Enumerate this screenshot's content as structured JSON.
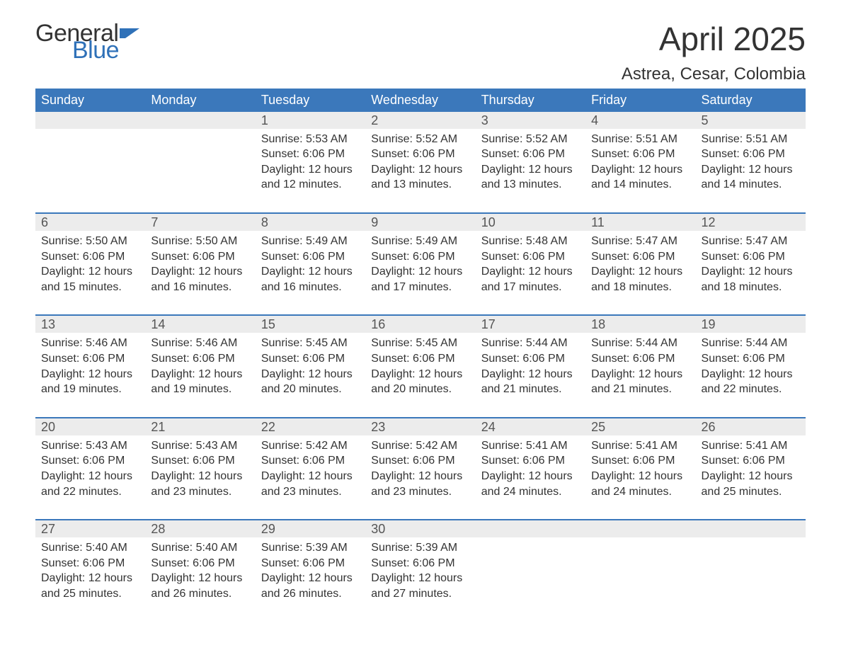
{
  "logo": {
    "text_general": "General",
    "text_blue": "Blue",
    "flag_color": "#2f71b8"
  },
  "title": "April 2025",
  "subtitle": "Astrea, Cesar, Colombia",
  "colors": {
    "header_bg": "#3b78bb",
    "header_text": "#ffffff",
    "daynum_bg": "#ececec",
    "rule": "#3b78bb",
    "text": "#333333"
  },
  "weekdays": [
    "Sunday",
    "Monday",
    "Tuesday",
    "Wednesday",
    "Thursday",
    "Friday",
    "Saturday"
  ],
  "weeks": [
    [
      {
        "num": "",
        "lines": []
      },
      {
        "num": "",
        "lines": []
      },
      {
        "num": "1",
        "lines": [
          "Sunrise: 5:53 AM",
          "Sunset: 6:06 PM",
          "Daylight: 12 hours and 12 minutes."
        ]
      },
      {
        "num": "2",
        "lines": [
          "Sunrise: 5:52 AM",
          "Sunset: 6:06 PM",
          "Daylight: 12 hours and 13 minutes."
        ]
      },
      {
        "num": "3",
        "lines": [
          "Sunrise: 5:52 AM",
          "Sunset: 6:06 PM",
          "Daylight: 12 hours and 13 minutes."
        ]
      },
      {
        "num": "4",
        "lines": [
          "Sunrise: 5:51 AM",
          "Sunset: 6:06 PM",
          "Daylight: 12 hours and 14 minutes."
        ]
      },
      {
        "num": "5",
        "lines": [
          "Sunrise: 5:51 AM",
          "Sunset: 6:06 PM",
          "Daylight: 12 hours and 14 minutes."
        ]
      }
    ],
    [
      {
        "num": "6",
        "lines": [
          "Sunrise: 5:50 AM",
          "Sunset: 6:06 PM",
          "Daylight: 12 hours and 15 minutes."
        ]
      },
      {
        "num": "7",
        "lines": [
          "Sunrise: 5:50 AM",
          "Sunset: 6:06 PM",
          "Daylight: 12 hours and 16 minutes."
        ]
      },
      {
        "num": "8",
        "lines": [
          "Sunrise: 5:49 AM",
          "Sunset: 6:06 PM",
          "Daylight: 12 hours and 16 minutes."
        ]
      },
      {
        "num": "9",
        "lines": [
          "Sunrise: 5:49 AM",
          "Sunset: 6:06 PM",
          "Daylight: 12 hours and 17 minutes."
        ]
      },
      {
        "num": "10",
        "lines": [
          "Sunrise: 5:48 AM",
          "Sunset: 6:06 PM",
          "Daylight: 12 hours and 17 minutes."
        ]
      },
      {
        "num": "11",
        "lines": [
          "Sunrise: 5:47 AM",
          "Sunset: 6:06 PM",
          "Daylight: 12 hours and 18 minutes."
        ]
      },
      {
        "num": "12",
        "lines": [
          "Sunrise: 5:47 AM",
          "Sunset: 6:06 PM",
          "Daylight: 12 hours and 18 minutes."
        ]
      }
    ],
    [
      {
        "num": "13",
        "lines": [
          "Sunrise: 5:46 AM",
          "Sunset: 6:06 PM",
          "Daylight: 12 hours and 19 minutes."
        ]
      },
      {
        "num": "14",
        "lines": [
          "Sunrise: 5:46 AM",
          "Sunset: 6:06 PM",
          "Daylight: 12 hours and 19 minutes."
        ]
      },
      {
        "num": "15",
        "lines": [
          "Sunrise: 5:45 AM",
          "Sunset: 6:06 PM",
          "Daylight: 12 hours and 20 minutes."
        ]
      },
      {
        "num": "16",
        "lines": [
          "Sunrise: 5:45 AM",
          "Sunset: 6:06 PM",
          "Daylight: 12 hours and 20 minutes."
        ]
      },
      {
        "num": "17",
        "lines": [
          "Sunrise: 5:44 AM",
          "Sunset: 6:06 PM",
          "Daylight: 12 hours and 21 minutes."
        ]
      },
      {
        "num": "18",
        "lines": [
          "Sunrise: 5:44 AM",
          "Sunset: 6:06 PM",
          "Daylight: 12 hours and 21 minutes."
        ]
      },
      {
        "num": "19",
        "lines": [
          "Sunrise: 5:44 AM",
          "Sunset: 6:06 PM",
          "Daylight: 12 hours and 22 minutes."
        ]
      }
    ],
    [
      {
        "num": "20",
        "lines": [
          "Sunrise: 5:43 AM",
          "Sunset: 6:06 PM",
          "Daylight: 12 hours and 22 minutes."
        ]
      },
      {
        "num": "21",
        "lines": [
          "Sunrise: 5:43 AM",
          "Sunset: 6:06 PM",
          "Daylight: 12 hours and 23 minutes."
        ]
      },
      {
        "num": "22",
        "lines": [
          "Sunrise: 5:42 AM",
          "Sunset: 6:06 PM",
          "Daylight: 12 hours and 23 minutes."
        ]
      },
      {
        "num": "23",
        "lines": [
          "Sunrise: 5:42 AM",
          "Sunset: 6:06 PM",
          "Daylight: 12 hours and 23 minutes."
        ]
      },
      {
        "num": "24",
        "lines": [
          "Sunrise: 5:41 AM",
          "Sunset: 6:06 PM",
          "Daylight: 12 hours and 24 minutes."
        ]
      },
      {
        "num": "25",
        "lines": [
          "Sunrise: 5:41 AM",
          "Sunset: 6:06 PM",
          "Daylight: 12 hours and 24 minutes."
        ]
      },
      {
        "num": "26",
        "lines": [
          "Sunrise: 5:41 AM",
          "Sunset: 6:06 PM",
          "Daylight: 12 hours and 25 minutes."
        ]
      }
    ],
    [
      {
        "num": "27",
        "lines": [
          "Sunrise: 5:40 AM",
          "Sunset: 6:06 PM",
          "Daylight: 12 hours and 25 minutes."
        ]
      },
      {
        "num": "28",
        "lines": [
          "Sunrise: 5:40 AM",
          "Sunset: 6:06 PM",
          "Daylight: 12 hours and 26 minutes."
        ]
      },
      {
        "num": "29",
        "lines": [
          "Sunrise: 5:39 AM",
          "Sunset: 6:06 PM",
          "Daylight: 12 hours and 26 minutes."
        ]
      },
      {
        "num": "30",
        "lines": [
          "Sunrise: 5:39 AM",
          "Sunset: 6:06 PM",
          "Daylight: 12 hours and 27 minutes."
        ]
      },
      {
        "num": "",
        "lines": []
      },
      {
        "num": "",
        "lines": []
      },
      {
        "num": "",
        "lines": []
      }
    ]
  ]
}
